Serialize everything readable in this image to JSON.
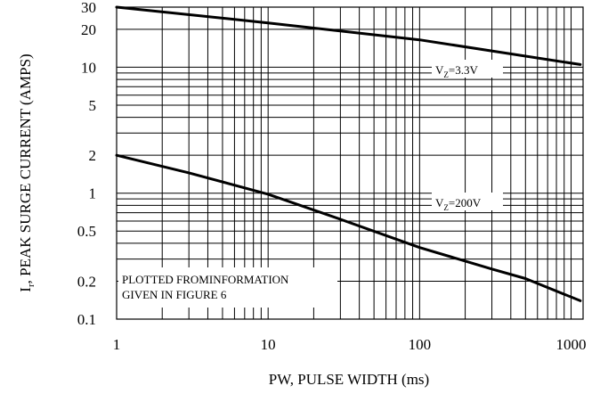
{
  "chart_data": {
    "type": "line",
    "x_scale": "log",
    "y_scale": "log",
    "xlim": [
      1,
      1200
    ],
    "ylim": [
      0.1,
      30
    ],
    "xlabel": "PW, PULSE WIDTH (ms)",
    "ylabel": "I, PEAK SURGE CURRENT (AMPS)",
    "ylabel_sub": "r",
    "x_ticks": [
      {
        "value": 1,
        "label": "1"
      },
      {
        "value": 10,
        "label": "10"
      },
      {
        "value": 100,
        "label": "100"
      },
      {
        "value": 1000,
        "label": "1000"
      }
    ],
    "y_ticks": [
      {
        "value": 0.1,
        "label": "0.1"
      },
      {
        "value": 0.2,
        "label": "0.2"
      },
      {
        "value": 0.5,
        "label": "0.5"
      },
      {
        "value": 1,
        "label": "1"
      },
      {
        "value": 2,
        "label": "2"
      },
      {
        "value": 5,
        "label": "5"
      },
      {
        "value": 10,
        "label": "10"
      },
      {
        "value": 20,
        "label": "20"
      },
      {
        "value": 30,
        "label": "30"
      }
    ],
    "grid": true,
    "series": [
      {
        "label_main": "V",
        "label_sub": "Z",
        "label_rest": "=3.3V",
        "x": [
          1,
          10,
          100,
          1150
        ],
        "y": [
          30,
          22.5,
          16.5,
          10.5
        ]
      },
      {
        "label_main": "V",
        "label_sub": "Z",
        "label_rest": "=200V",
        "x": [
          1,
          3,
          10,
          30,
          100,
          300,
          500,
          1150
        ],
        "y": [
          2,
          1.45,
          0.98,
          0.62,
          0.37,
          0.25,
          0.21,
          0.14
        ]
      }
    ],
    "annotations": [
      "PLOTTED FROMINFORMATION",
      "GIVEN IN FIGURE 6"
    ]
  }
}
